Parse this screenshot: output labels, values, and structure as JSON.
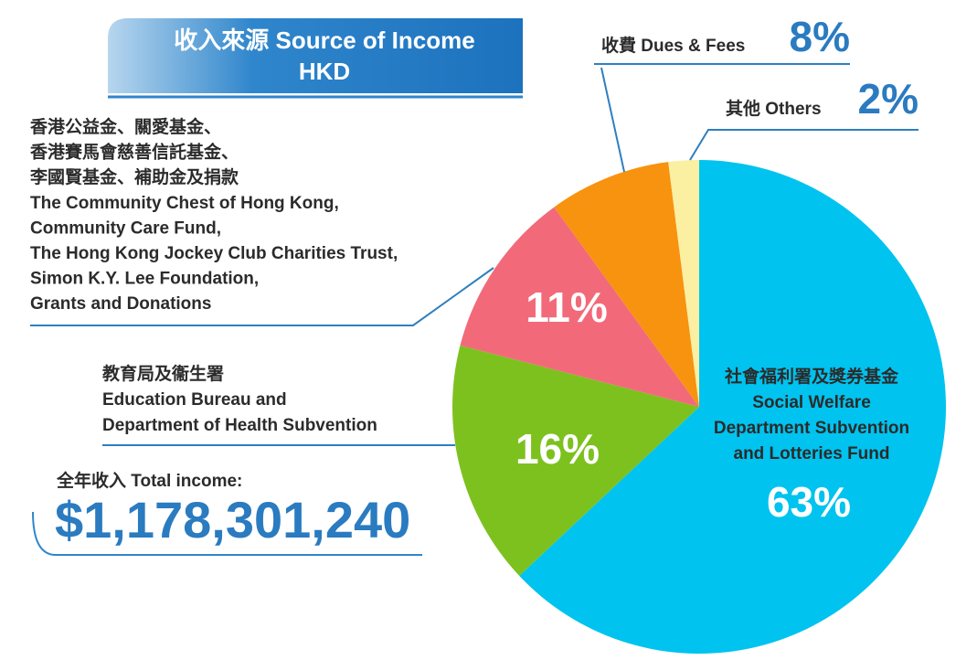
{
  "chart_data": {
    "type": "pie",
    "title": [
      "收入來源 Source of Income",
      "HKD"
    ],
    "categories": [
      [
        "社會福利署及獎券基金",
        "Social Welfare",
        "Department Subvention",
        "and Lotteries Fund"
      ],
      [
        "教育局及衞生署",
        "Education Bureau and",
        "Department of Health Subvention"
      ],
      [
        "香港公益金、關愛基金、",
        "香港賽馬會慈善信託基金、",
        "李國賢基金、補助金及捐款",
        "The Community Chest of Hong Kong,",
        "Community Care Fund,",
        "The Hong Kong Jockey Club Charities Trust,",
        "Simon K.Y. Lee Foundation,",
        "Grants and Donations"
      ],
      [
        "收費 Dues & Fees"
      ],
      [
        "其他 Others"
      ]
    ],
    "values": [
      63,
      16,
      11,
      8,
      2
    ],
    "value_labels": [
      "63%",
      "16%",
      "11%",
      "8%",
      "2%"
    ],
    "colors": [
      "#00c3ef",
      "#7dc11f",
      "#f26a79",
      "#f7930e",
      "#fbefa2"
    ],
    "total": {
      "label": "全年收入 Total income:",
      "amount": "$1,178,301,240"
    }
  }
}
